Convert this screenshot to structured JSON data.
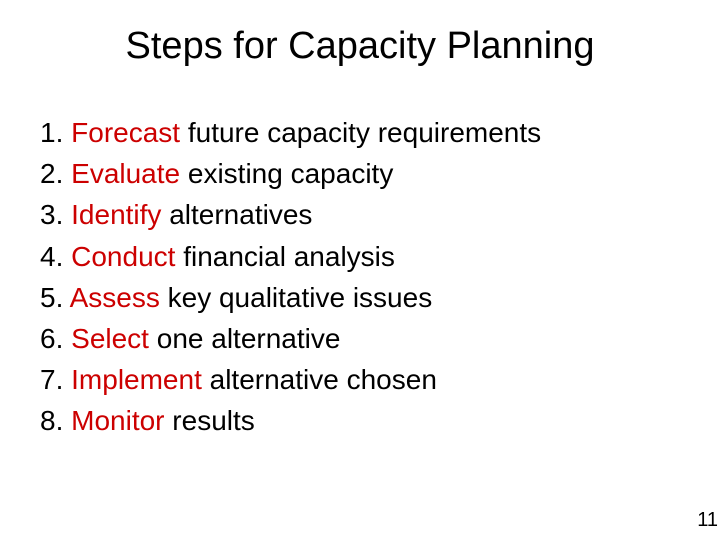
{
  "title": "Steps for Capacity Planning",
  "list_items": [
    {
      "number": "1.",
      "highlight": "Forecast",
      "rest": " future capacity requirements"
    },
    {
      "number": "2.",
      "highlight": "Evaluate",
      "rest": " existing capacity"
    },
    {
      "number": "3.",
      "highlight": "Identify",
      "rest": " alternatives"
    },
    {
      "number": "4.",
      "highlight": "Conduct",
      "rest": " financial analysis"
    },
    {
      "number": "5.",
      "highlight": "Assess",
      "rest": " key qualitative issues"
    },
    {
      "number": "6.",
      "highlight": "Select",
      "rest": " one alternative"
    },
    {
      "number": "7.",
      "highlight": "Implement",
      "rest": " alternative chosen"
    },
    {
      "number": "8.",
      "highlight": "Monitor",
      "rest": " results"
    }
  ],
  "page_number": "11",
  "colors": {
    "background": "#ffffff",
    "text": "#000000",
    "highlight": "#cc0000"
  },
  "typography": {
    "title_fontsize": 38,
    "list_fontsize": 28,
    "page_number_fontsize": 20,
    "font_family": "Arial"
  }
}
